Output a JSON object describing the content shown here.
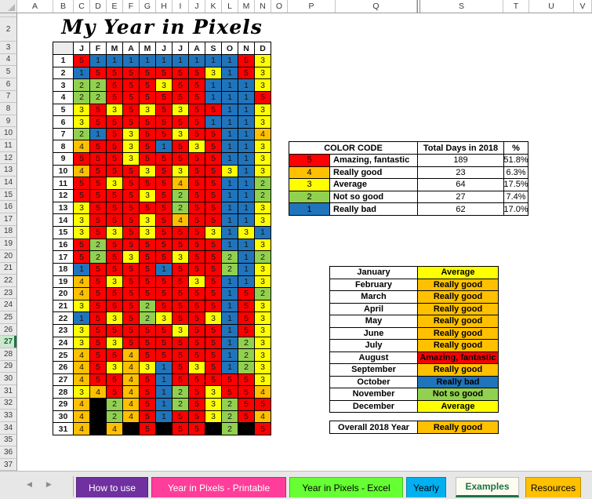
{
  "title": "My Year in Pixels",
  "colors": {
    "c1": "#2074BC",
    "c2": "#92D050",
    "c3": "#FFFF00",
    "c4": "#FFC000",
    "c5": "#FF0000",
    "empty": "#000000",
    "accent_green": "#217346"
  },
  "spreadsheet": {
    "column_headers": [
      "A",
      "B",
      "C",
      "D",
      "E",
      "F",
      "G",
      "H",
      "I",
      "J",
      "K",
      "L",
      "M",
      "N",
      "O",
      "P",
      "Q",
      "S",
      "T",
      "U",
      "V"
    ],
    "hidden_column_after": "Q",
    "row_start": 2,
    "row_end": 38,
    "active_row": 27
  },
  "pixel_grid": {
    "month_headers": [
      "J",
      "F",
      "M",
      "A",
      "M",
      "J",
      "J",
      "A",
      "S",
      "O",
      "N",
      "D"
    ],
    "days": [
      1,
      2,
      3,
      4,
      5,
      6,
      7,
      8,
      9,
      10,
      11,
      12,
      13,
      14,
      15,
      16,
      17,
      18,
      19,
      20,
      21,
      22,
      23,
      24,
      25,
      26,
      27,
      28,
      29,
      30,
      31
    ],
    "cells": [
      [
        5,
        1,
        1,
        1,
        1,
        1,
        1,
        1,
        1,
        1,
        5,
        3
      ],
      [
        1,
        5,
        5,
        5,
        5,
        5,
        5,
        5,
        3,
        1,
        5,
        3
      ],
      [
        2,
        2,
        5,
        5,
        5,
        3,
        5,
        5,
        1,
        1,
        1,
        3
      ],
      [
        2,
        2,
        5,
        5,
        5,
        5,
        5,
        5,
        1,
        1,
        1,
        5
      ],
      [
        3,
        5,
        3,
        5,
        3,
        5,
        3,
        5,
        5,
        1,
        1,
        3
      ],
      [
        3,
        5,
        5,
        5,
        5,
        5,
        5,
        5,
        1,
        1,
        1,
        3
      ],
      [
        2,
        1,
        5,
        3,
        5,
        5,
        3,
        5,
        5,
        1,
        1,
        4
      ],
      [
        4,
        5,
        5,
        3,
        5,
        1,
        5,
        3,
        5,
        1,
        1,
        3
      ],
      [
        5,
        5,
        5,
        3,
        5,
        5,
        5,
        5,
        5,
        1,
        1,
        3
      ],
      [
        4,
        5,
        5,
        5,
        3,
        5,
        3,
        5,
        5,
        3,
        1,
        3
      ],
      [
        5,
        5,
        3,
        5,
        5,
        5,
        4,
        5,
        5,
        1,
        1,
        2
      ],
      [
        5,
        5,
        5,
        5,
        3,
        5,
        2,
        5,
        5,
        1,
        1,
        2
      ],
      [
        3,
        5,
        5,
        5,
        5,
        5,
        2,
        5,
        5,
        1,
        1,
        3
      ],
      [
        3,
        5,
        5,
        5,
        3,
        5,
        4,
        5,
        5,
        1,
        1,
        3
      ],
      [
        3,
        5,
        3,
        5,
        3,
        5,
        5,
        5,
        3,
        1,
        3,
        1
      ],
      [
        5,
        2,
        5,
        5,
        5,
        5,
        5,
        5,
        5,
        1,
        1,
        3
      ],
      [
        5,
        2,
        5,
        3,
        5,
        5,
        3,
        5,
        5,
        2,
        1,
        2
      ],
      [
        1,
        5,
        5,
        5,
        5,
        1,
        5,
        5,
        5,
        2,
        1,
        3
      ],
      [
        4,
        5,
        3,
        5,
        5,
        5,
        5,
        3,
        5,
        1,
        1,
        3
      ],
      [
        4,
        5,
        5,
        5,
        5,
        5,
        5,
        5,
        5,
        1,
        5,
        2
      ],
      [
        3,
        5,
        5,
        5,
        2,
        5,
        5,
        5,
        5,
        1,
        5,
        3
      ],
      [
        1,
        5,
        3,
        5,
        2,
        3,
        5,
        5,
        3,
        1,
        5,
        3
      ],
      [
        3,
        5,
        5,
        5,
        5,
        5,
        3,
        5,
        5,
        1,
        5,
        3
      ],
      [
        3,
        5,
        3,
        5,
        5,
        5,
        5,
        5,
        5,
        1,
        2,
        3
      ],
      [
        4,
        5,
        5,
        4,
        5,
        5,
        5,
        5,
        5,
        1,
        2,
        3
      ],
      [
        4,
        5,
        3,
        4,
        3,
        1,
        5,
        3,
        5,
        1,
        2,
        3
      ],
      [
        4,
        5,
        5,
        4,
        5,
        1,
        5,
        5,
        5,
        5,
        5,
        3
      ],
      [
        3,
        4,
        5,
        4,
        5,
        1,
        2,
        5,
        3,
        5,
        5,
        4
      ],
      [
        4,
        0,
        2,
        4,
        5,
        1,
        2,
        5,
        3,
        2,
        5,
        5
      ],
      [
        4,
        0,
        2,
        4,
        5,
        1,
        5,
        5,
        3,
        2,
        5,
        4
      ],
      [
        4,
        0,
        4,
        0,
        5,
        0,
        5,
        5,
        0,
        2,
        0,
        5
      ]
    ]
  },
  "color_code_table": {
    "headers": [
      "COLOR CODE",
      "Total Days in 2018",
      "%"
    ],
    "rows": [
      {
        "score": "5",
        "label": "Amazing, fantastic",
        "days": "189",
        "percent": "51.8%",
        "color_key": "c5"
      },
      {
        "score": "4",
        "label": "Really good",
        "days": "23",
        "percent": "6.3%",
        "color_key": "c4"
      },
      {
        "score": "3",
        "label": "Average",
        "days": "64",
        "percent": "17.5%",
        "color_key": "c3"
      },
      {
        "score": "2",
        "label": "Not so good",
        "days": "27",
        "percent": "7.4%",
        "color_key": "c2"
      },
      {
        "score": "1",
        "label": "Really bad",
        "days": "62",
        "percent": "17.0%",
        "color_key": "c1"
      }
    ]
  },
  "monthly_table": {
    "rows": [
      {
        "month": "January",
        "rating": "Average",
        "color_key": "c3"
      },
      {
        "month": "February",
        "rating": "Really good",
        "color_key": "c4"
      },
      {
        "month": "March",
        "rating": "Really good",
        "color_key": "c4"
      },
      {
        "month": "April",
        "rating": "Really good",
        "color_key": "c4"
      },
      {
        "month": "May",
        "rating": "Really good",
        "color_key": "c4"
      },
      {
        "month": "June",
        "rating": "Really good",
        "color_key": "c4"
      },
      {
        "month": "July",
        "rating": "Really good",
        "color_key": "c4"
      },
      {
        "month": "August",
        "rating": "Amazing, fantastic",
        "color_key": "c5"
      },
      {
        "month": "September",
        "rating": "Really good",
        "color_key": "c4"
      },
      {
        "month": "October",
        "rating": "Really bad",
        "color_key": "c1"
      },
      {
        "month": "November",
        "rating": "Not so good",
        "color_key": "c2"
      },
      {
        "month": "December",
        "rating": "Average",
        "color_key": "c3"
      }
    ]
  },
  "overall": {
    "label": "Overall 2018 Year",
    "rating": "Really good",
    "color_key": "c4"
  },
  "tab_nav": {
    "left": "◀",
    "right": "▶"
  },
  "sheet_tabs": [
    {
      "label": "How to use",
      "bg": "#7030A0",
      "fg": "#FFFFFF",
      "active": false
    },
    {
      "label": "Year in Pixels - Printable",
      "bg": "#FF3D9A",
      "fg": "#FFFFFF",
      "active": false
    },
    {
      "label": "Year in Pixels - Excel",
      "bg": "#66FF33",
      "fg": "#000000",
      "active": false
    },
    {
      "label": "Yearly",
      "bg": "#00B0F0",
      "fg": "#000000",
      "active": false
    },
    {
      "label": "Examples",
      "bg": "#FCFDF0",
      "fg": "#1E7145",
      "active": true
    },
    {
      "label": "Resources",
      "bg": "#FFC000",
      "fg": "#000000",
      "active": false
    }
  ]
}
